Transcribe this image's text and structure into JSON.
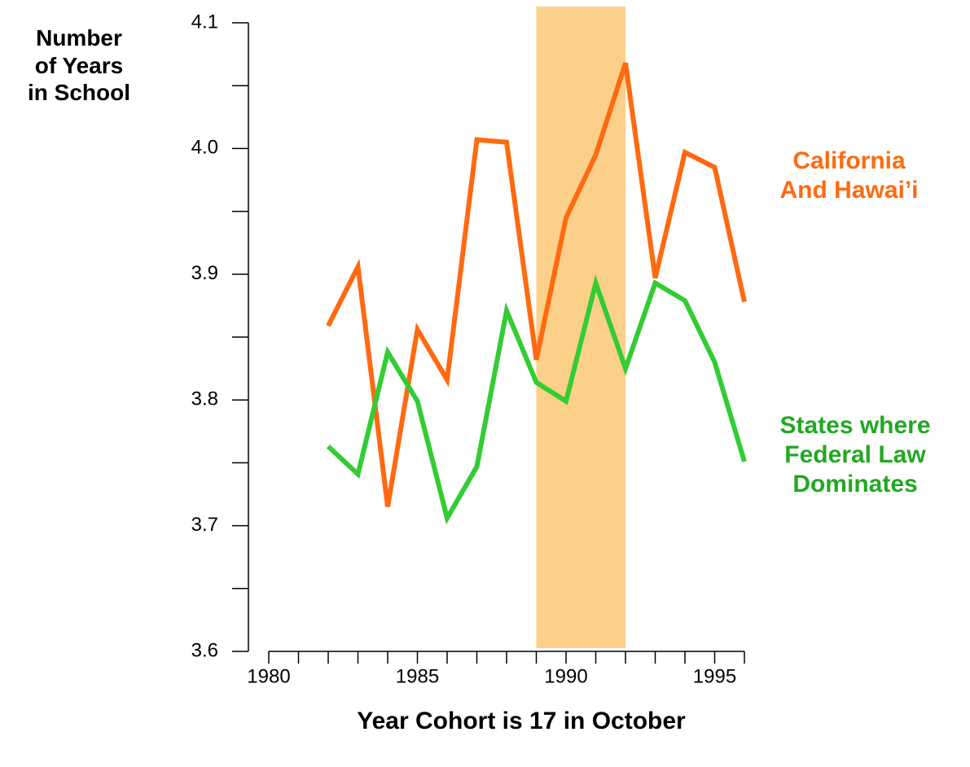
{
  "chart_data": {
    "type": "line",
    "ylabel": "Number of Years in School",
    "xlabel": "Year Cohort is 17 in October",
    "x": [
      1982,
      1983,
      1984,
      1985,
      1986,
      1987,
      1988,
      1989,
      1990,
      1991,
      1992,
      1993,
      1994,
      1995,
      1996
    ],
    "series": [
      {
        "name": "California And Hawai’i",
        "color": "#ff6a10",
        "label_color": "#ff6a10",
        "values": [
          3.859,
          3.906,
          3.715,
          3.856,
          3.816,
          4.007,
          4.005,
          3.832,
          3.945,
          3.995,
          4.068,
          3.897,
          3.997,
          3.985,
          3.878
        ]
      },
      {
        "name": "States where Federal Law Dominates",
        "color": "#33cc33",
        "label_color": "#22a822",
        "values": [
          3.763,
          3.741,
          3.838,
          3.799,
          3.706,
          3.747,
          3.871,
          3.814,
          3.799,
          3.893,
          3.825,
          3.893,
          3.879,
          3.83,
          3.751
        ]
      }
    ],
    "highlight": {
      "x": [
        1989,
        1992
      ],
      "color": "#fdd08a"
    },
    "xlim": [
      1980,
      1996
    ],
    "xticks": [
      1980,
      1985,
      1990,
      1995
    ],
    "xminorticks": [
      1980,
      1981,
      1982,
      1983,
      1984,
      1985,
      1986,
      1987,
      1988,
      1989,
      1990,
      1991,
      1992,
      1993,
      1994,
      1995,
      1996
    ],
    "ylim": [
      3.6,
      4.1
    ],
    "yticks": [
      3.6,
      3.7,
      3.8,
      3.9,
      {
        "value": 4,
        "label": "4.0"
      },
      4.1
    ],
    "yminorticks": [
      3.6,
      3.65,
      3.7,
      3.75,
      3.8,
      3.85,
      3.9,
      3.95,
      4,
      4.05,
      4.1
    ]
  }
}
